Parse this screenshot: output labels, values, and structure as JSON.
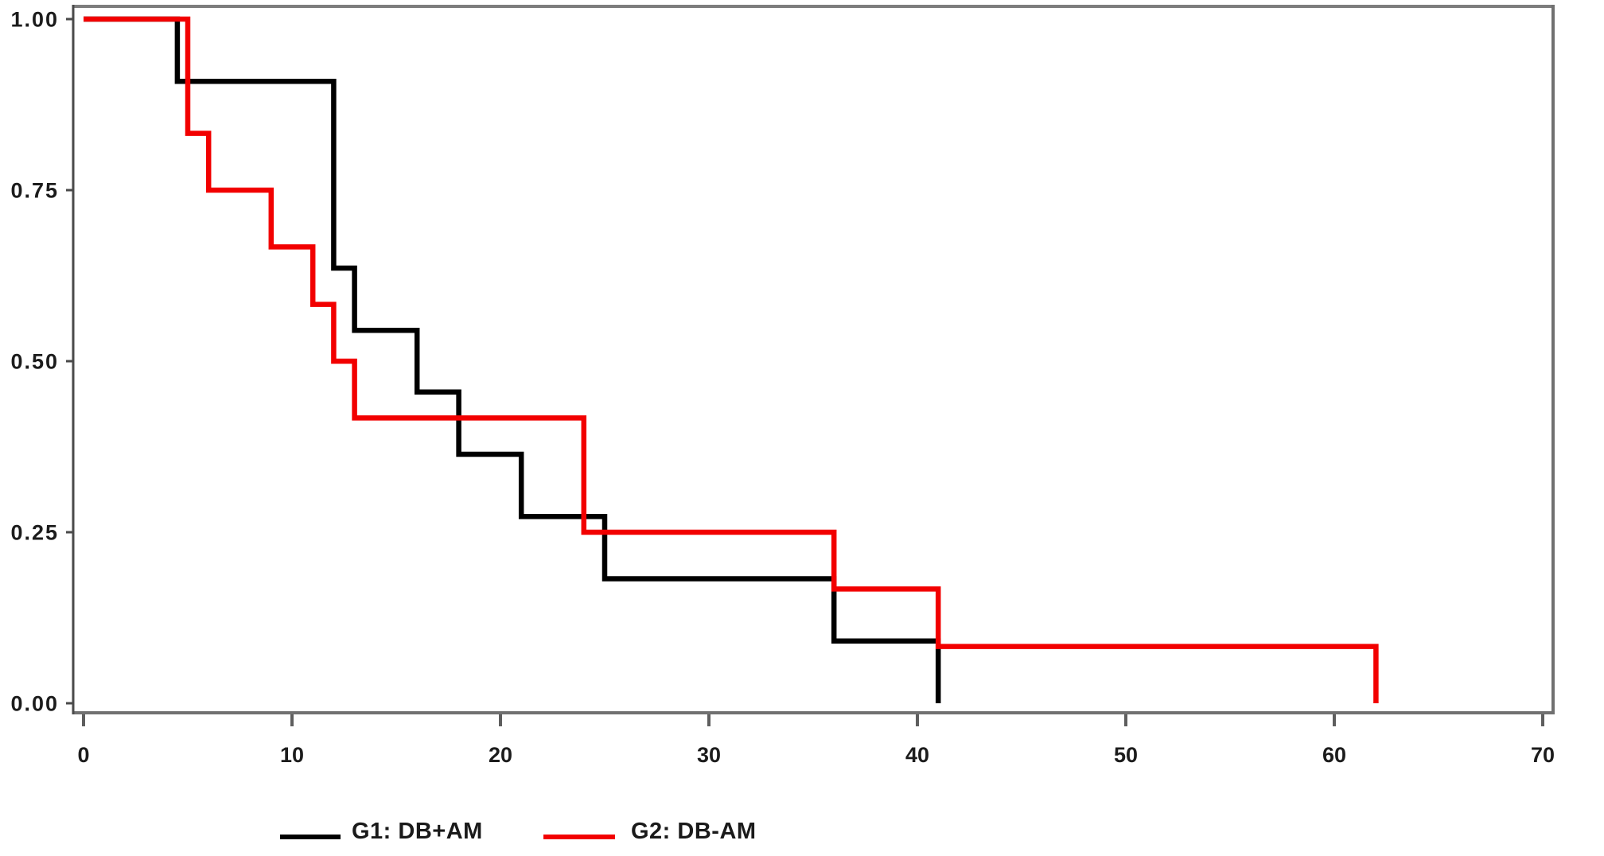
{
  "figure": {
    "background_color": "#ffffff",
    "frame_color": "#707070",
    "axis_color": "#4a4a4a",
    "tick_label_color": "#1c1c1c"
  },
  "legend": {
    "position": "bottom",
    "items": [
      {
        "label": "G1: DB+AM",
        "color": "#000000"
      },
      {
        "label": "G2: DB-AM",
        "color": "#f20000"
      }
    ]
  },
  "chart_data": {
    "type": "line",
    "subtype": "kaplan-meier-step",
    "title": "",
    "xlabel": "",
    "ylabel": "",
    "xlim": [
      0,
      70
    ],
    "ylim": [
      0,
      1
    ],
    "grid": false,
    "legend_position": "bottom",
    "x_ticks": [
      {
        "value": 0,
        "label": "0"
      },
      {
        "value": 10,
        "label": "10"
      },
      {
        "value": 20,
        "label": "20"
      },
      {
        "value": 30,
        "label": "30"
      },
      {
        "value": 40,
        "label": "40"
      },
      {
        "value": 50,
        "label": "50"
      },
      {
        "value": 60,
        "label": "60"
      },
      {
        "value": 70,
        "label": "70"
      }
    ],
    "y_ticks": [
      {
        "value": 1.0,
        "label": "1.00"
      },
      {
        "value": 0.75,
        "label": "0.75"
      },
      {
        "value": 0.5,
        "label": "0.50"
      },
      {
        "value": 0.25,
        "label": "0.25"
      },
      {
        "value": 0.0,
        "label": "0.00"
      }
    ],
    "series": [
      {
        "name": "G1: DB+AM",
        "color": "#000000",
        "line_width": 6.5,
        "points": [
          [
            0,
            1.0
          ],
          [
            4.5,
            0.909
          ],
          [
            12,
            0.636
          ],
          [
            13,
            0.545
          ],
          [
            16,
            0.455
          ],
          [
            18,
            0.364
          ],
          [
            21,
            0.273
          ],
          [
            25,
            0.182
          ],
          [
            36,
            0.091
          ],
          [
            41,
            0.0
          ]
        ]
      },
      {
        "name": "G2: DB-AM",
        "color": "#f20000",
        "line_width": 6.5,
        "points": [
          [
            0,
            1.0
          ],
          [
            5,
            0.833
          ],
          [
            6,
            0.75
          ],
          [
            9,
            0.667
          ],
          [
            11,
            0.583
          ],
          [
            12,
            0.5
          ],
          [
            13,
            0.417
          ],
          [
            24,
            0.25
          ],
          [
            36,
            0.167
          ],
          [
            41,
            0.083
          ],
          [
            62,
            0.0
          ]
        ]
      }
    ]
  }
}
